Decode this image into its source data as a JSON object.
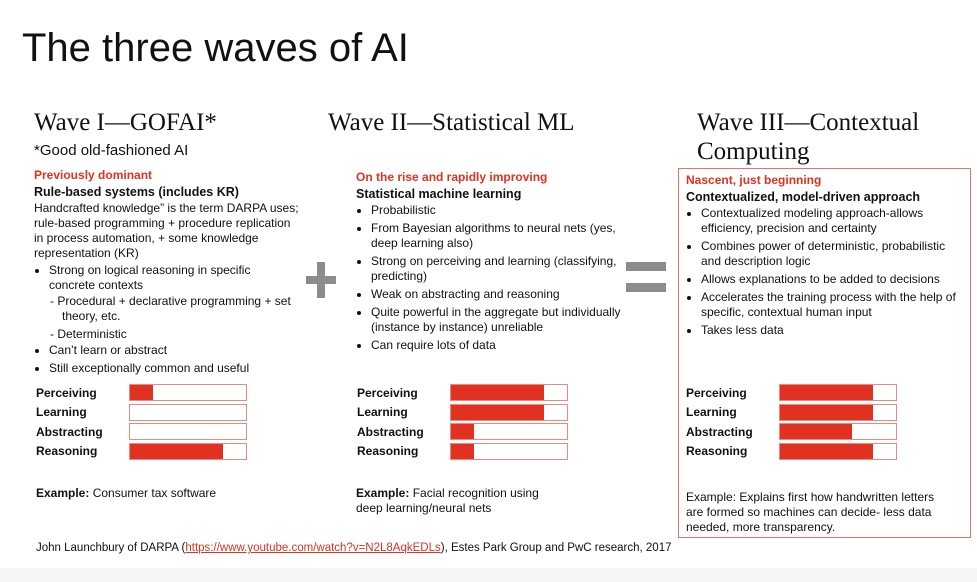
{
  "title": "The three waves of AI",
  "waves": [
    {
      "heading": "Wave I—GOFAI*",
      "note": "*Good old-fashioned AI",
      "status": "Previously dominant",
      "subtitle": "Rule-based systems (includes KR)",
      "intro": "Handcrafted knowledge” is the term DARPA uses; rule-based programming + procedure replication in process automation, + some knowledge representation (KR)",
      "bullets": [
        "Strong on logical reasoning in specific concrete contexts"
      ],
      "sub_bullets": [
        "Procedural + declarative programming + set theory, etc.",
        "Deterministic"
      ],
      "bullets2": [
        "Can’t learn or abstract",
        "Still exceptionally common and useful"
      ],
      "example_label": "Example:",
      "example": "Consumer tax software",
      "bars": [
        {
          "label": "Perceiving",
          "value": 0.2
        },
        {
          "label": "Learning",
          "value": 0
        },
        {
          "label": "Abstracting",
          "value": 0
        },
        {
          "label": "Reasoning",
          "value": 0.8
        }
      ]
    },
    {
      "heading": "Wave II—Statistical ML",
      "status": "On the rise and rapidly improving",
      "subtitle": "Statistical machine learning",
      "bullets": [
        "Probabilistic",
        "From Bayesian algorithms to neural nets (yes, deep learning also)",
        "Strong on perceiving and learning (classifying, predicting)",
        "Weak on abstracting and reasoning",
        "Quite powerful in the aggregate but individually (instance by instance) unreliable",
        "Can require lots of data"
      ],
      "example_label": "Example:",
      "example": "Facial recognition using deep learning/neural nets",
      "bars": [
        {
          "label": "Perceiving",
          "value": 0.8
        },
        {
          "label": "Learning",
          "value": 0.8
        },
        {
          "label": "Abstracting",
          "value": 0.2
        },
        {
          "label": "Reasoning",
          "value": 0.2
        }
      ]
    },
    {
      "heading": "Wave III—Contextual Computing",
      "status": "Nascent, just beginning",
      "subtitle": "Contextualized, model-driven approach",
      "bullets": [
        "Contextualized modeling approach-allows efficiency, precision and certainty",
        "Combines power of deterministic, probabilistic and description logic",
        "Allows explanations to be added to decisions",
        "Accelerates the training process with the help of specific, contextual human input",
        "Takes less data"
      ],
      "example": "Example: Explains first how handwritten letters are formed so machines can decide- less data needed, more transparency.",
      "bars": [
        {
          "label": "Perceiving",
          "value": 0.8
        },
        {
          "label": "Learning",
          "value": 0.8
        },
        {
          "label": "Abstracting",
          "value": 0.62
        },
        {
          "label": "Reasoning",
          "value": 0.8
        }
      ]
    }
  ],
  "footer": {
    "prefix": "John Launchbury of DARPA (",
    "link": "https://www.youtube.com/watch?v=N2L8AqkEDLs",
    "suffix": "), Estes Park Group and PwC research, 2017"
  },
  "colors": {
    "accent": "#e03121",
    "box_border": "#e8736a",
    "operator": "#8c8c8c"
  }
}
